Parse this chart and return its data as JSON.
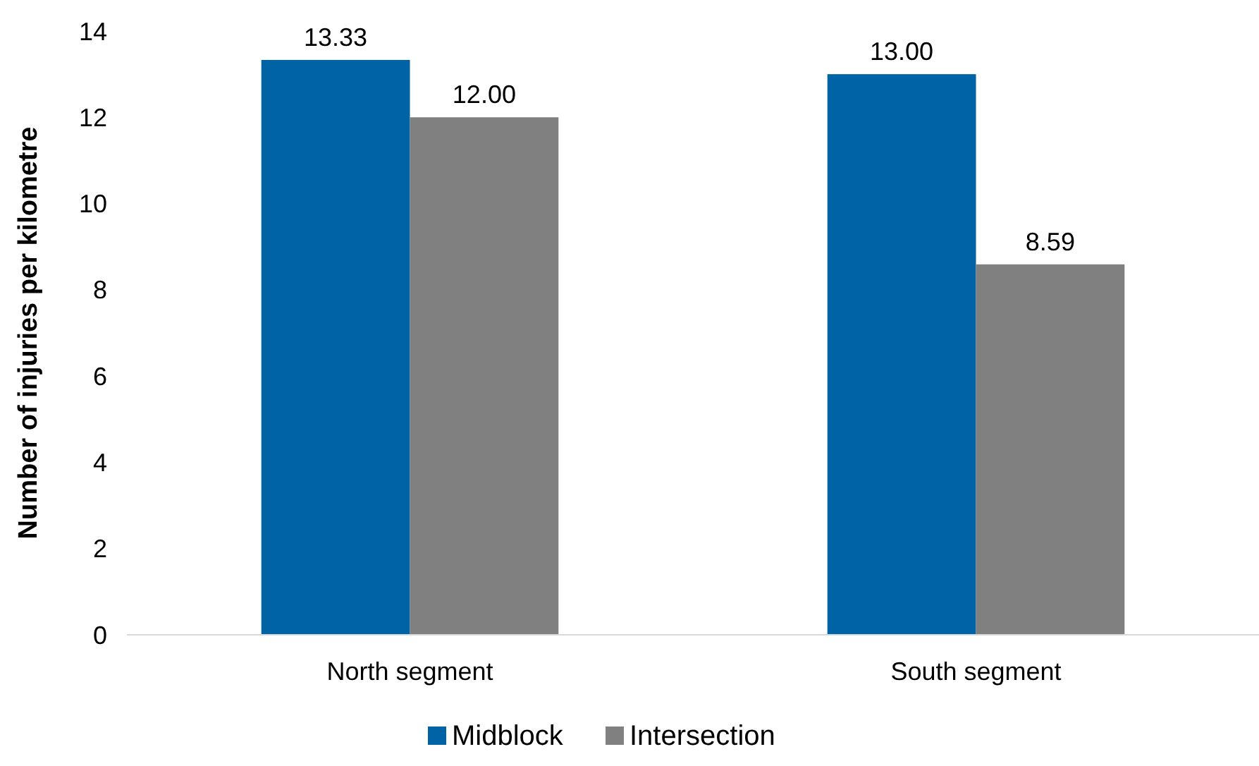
{
  "chart_data": {
    "type": "bar",
    "ylabel": "Number of injuries per kilometre",
    "categories": [
      "North segment",
      "South segment"
    ],
    "series": [
      {
        "name": "Midblock",
        "color": "#0063a6",
        "values": [
          13.33,
          13.0
        ],
        "value_labels": [
          "13.33",
          "13.00"
        ]
      },
      {
        "name": "Intersection",
        "color": "#808080",
        "values": [
          12.0,
          8.59
        ],
        "value_labels": [
          "12.00",
          "8.59"
        ]
      }
    ],
    "ylim": [
      0,
      14
    ],
    "yticks": [
      0,
      2,
      4,
      6,
      8,
      10,
      12,
      14
    ],
    "grid": false,
    "legend": "bottom"
  }
}
